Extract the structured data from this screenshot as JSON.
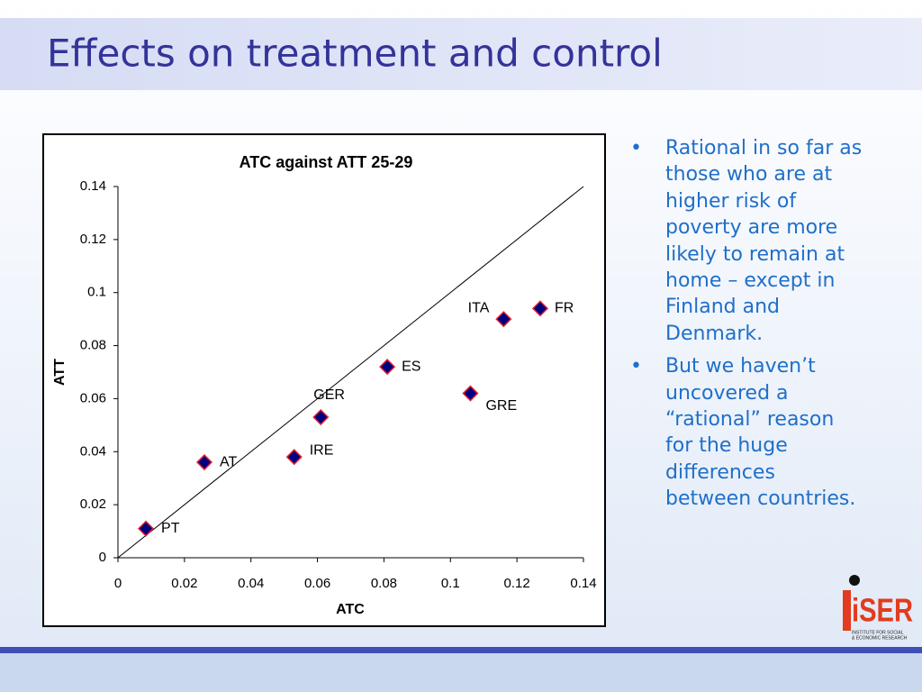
{
  "slide_title": "Effects on treatment and control",
  "bullets": [
    "Rational in so far as those who are at higher risk of poverty are more likely to remain at home – except in Finland and Denmark.",
    "But we haven’t uncovered a “rational” reason for the huge differences between countries."
  ],
  "logo": {
    "name": "iSER",
    "subtitle_line1": "INSTITUTE FOR SOCIAL",
    "subtitle_line2": "& ECONOMIC RESEARCH"
  },
  "chart_data": {
    "type": "scatter",
    "title": "ATC against ATT 25-29",
    "x_label": "ATC",
    "y_label": "ATT",
    "labels": [
      "PT",
      "AT",
      "IRE",
      "GER",
      "ES",
      "GRE",
      "ITA",
      "FR"
    ],
    "x": [
      0.0084,
      0.026,
      0.053,
      0.061,
      0.081,
      0.106,
      0.116,
      0.127
    ],
    "values": [
      0.011,
      0.036,
      0.038,
      0.053,
      0.072,
      0.062,
      0.09,
      0.094
    ],
    "color": "#000080",
    "edge_color": "#e8202a",
    "xlim": [
      0,
      0.14
    ],
    "ylim": [
      0,
      0.14
    ],
    "xticks": [
      0,
      0.02,
      0.04,
      0.06,
      0.08,
      0.1,
      0.12,
      0.14
    ],
    "yticks": [
      0,
      0.02,
      0.04,
      0.06,
      0.08,
      0.1,
      0.12,
      0.14
    ],
    "grid": false
  }
}
